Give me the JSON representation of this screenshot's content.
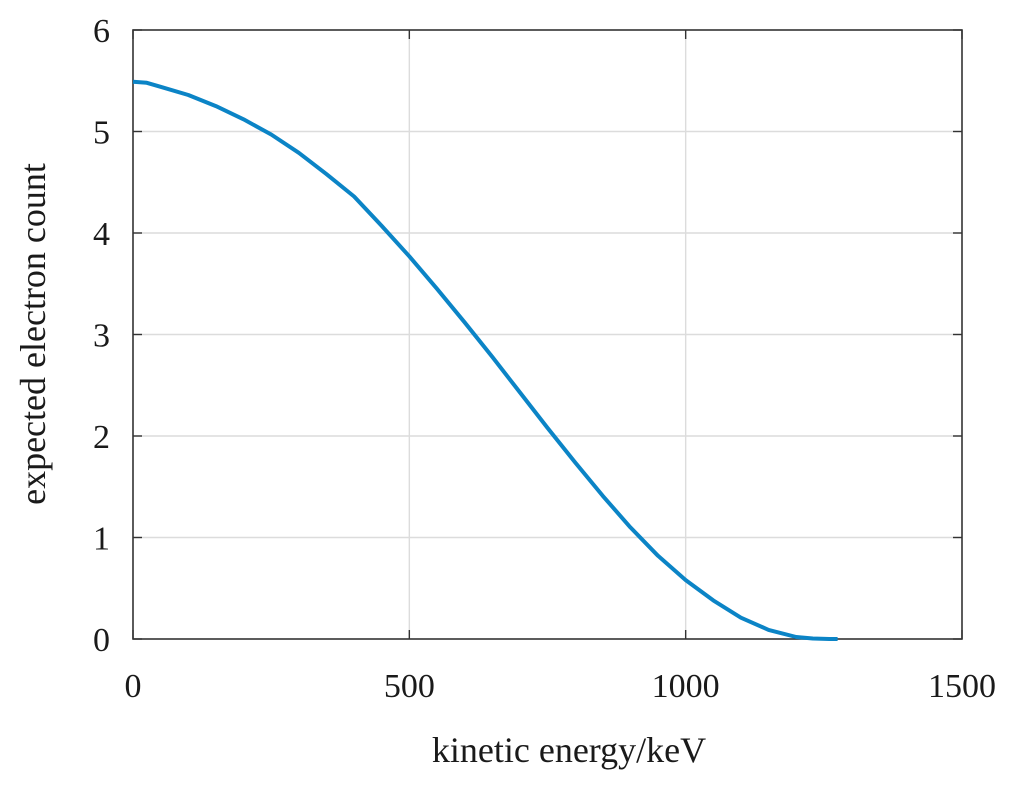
{
  "chart_data": {
    "type": "line",
    "title": "",
    "xlabel": "kinetic energy/keV",
    "ylabel": "expected electron count",
    "xlim": [
      0,
      1500
    ],
    "ylim": [
      0,
      6
    ],
    "xticks": [
      "0",
      "500",
      "1000",
      "1500"
    ],
    "yticks": [
      "0",
      "1",
      "2",
      "3",
      "4",
      "5",
      "6"
    ],
    "grid": true,
    "legend": "none",
    "series": [
      {
        "color": "#0b84c6",
        "x": [
          0,
          25,
          50,
          100,
          150,
          200,
          250,
          300,
          350,
          400,
          450,
          500,
          550,
          600,
          650,
          700,
          750,
          800,
          850,
          900,
          950,
          1000,
          1050,
          1100,
          1150,
          1200,
          1230,
          1260,
          1275
        ],
        "y": [
          5.49,
          5.48,
          5.44,
          5.36,
          5.25,
          5.12,
          4.97,
          4.79,
          4.58,
          4.36,
          4.07,
          3.77,
          3.45,
          3.12,
          2.78,
          2.43,
          2.08,
          1.74,
          1.41,
          1.1,
          0.82,
          0.58,
          0.38,
          0.21,
          0.09,
          0.02,
          0.005,
          0.0,
          0.0
        ]
      }
    ]
  }
}
